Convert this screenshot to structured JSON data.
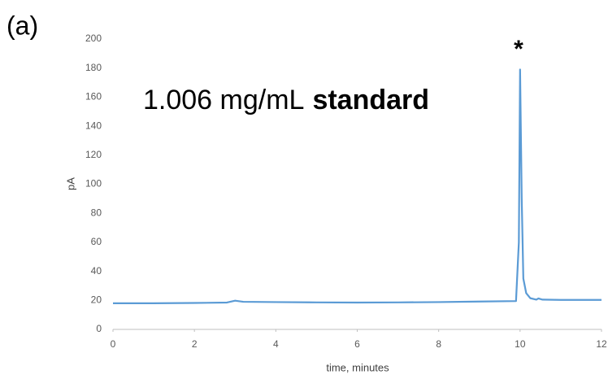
{
  "chart_data": {
    "type": "line",
    "panel_label": "(a)",
    "annotation": [
      "1.006 mg/mL",
      "standard"
    ],
    "peak_marker": "*",
    "xlabel": "time, minutes",
    "ylabel": "pA",
    "x": [
      0,
      1,
      2,
      2.8,
      3.0,
      3.2,
      4,
      5,
      6,
      7,
      8,
      9,
      9.9,
      9.97,
      10.0,
      10.04,
      10.08,
      10.15,
      10.25,
      10.4,
      10.45,
      10.55,
      11,
      12
    ],
    "values": [
      18,
      18,
      18.2,
      18.5,
      19.8,
      19,
      18.8,
      18.6,
      18.5,
      18.6,
      18.8,
      19.2,
      19.5,
      60,
      179,
      90,
      35,
      25,
      21.5,
      20.5,
      21.3,
      20.5,
      20.3,
      20.3
    ],
    "color": "#5b9bd5",
    "xlim": [
      0,
      12
    ],
    "xticks": [
      0,
      2,
      4,
      6,
      8,
      10,
      12
    ],
    "ylim": [
      0,
      200
    ],
    "yticks": [
      0,
      20,
      40,
      60,
      80,
      100,
      120,
      140,
      160,
      180,
      200
    ],
    "grid": false
  }
}
